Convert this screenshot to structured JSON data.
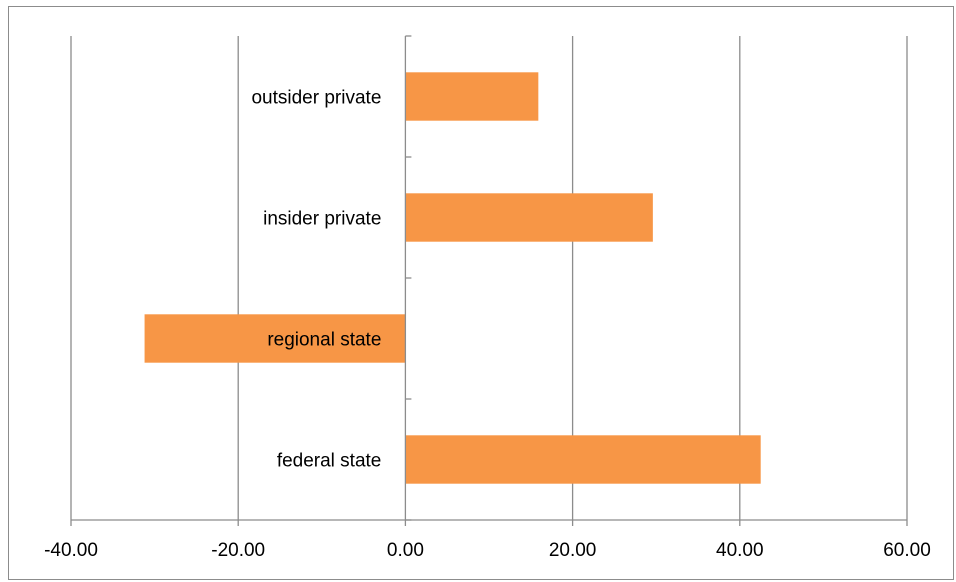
{
  "chart_data": {
    "type": "bar",
    "orientation": "horizontal",
    "title": "",
    "xlabel": "",
    "ylabel": "",
    "categories": [
      "federal state",
      "regional state",
      "insider private",
      "outsider private"
    ],
    "values": [
      42.5,
      -31.2,
      29.6,
      15.9
    ],
    "xlim": [
      -40,
      60
    ],
    "xticks": [
      -40,
      -20,
      0,
      20,
      40,
      60
    ],
    "xtick_labels": [
      "-40.00",
      "-20.00",
      "0.00",
      "20.00",
      "40.00",
      "60.00"
    ],
    "bar_color": "#f79646",
    "grid": "vertical",
    "legend": "none"
  }
}
